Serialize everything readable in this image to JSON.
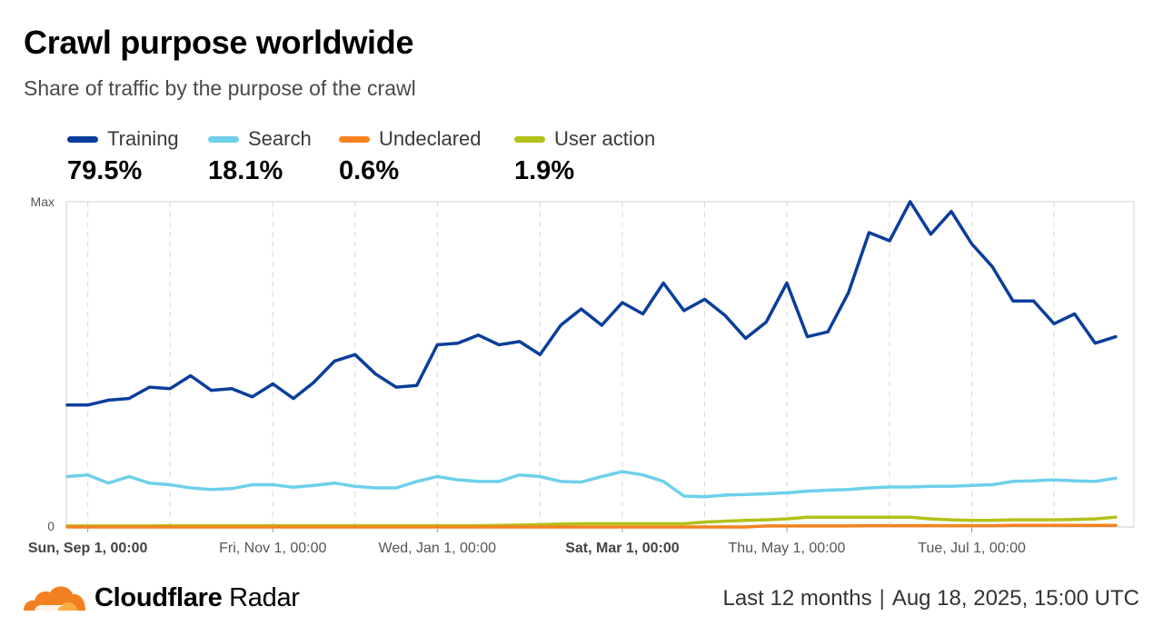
{
  "header": {
    "title": "Crawl purpose worldwide",
    "subtitle": "Share of traffic by the purpose of the crawl"
  },
  "legend": [
    {
      "name": "Training",
      "value": "79.5%",
      "color": "#0a3e9b"
    },
    {
      "name": "Search",
      "value": "18.1%",
      "color": "#6ed0ea"
    },
    {
      "name": "Undeclared",
      "value": "0.6%",
      "color": "#f5821f"
    },
    {
      "name": "User action",
      "value": "1.9%",
      "color": "#b2c21a"
    }
  ],
  "chart_data": {
    "type": "line",
    "y_tick_labels": [
      "Max",
      "0"
    ],
    "ylim": [
      0,
      100
    ],
    "x_tick_labels": [
      {
        "label": "Sun, Sep 1, 00:00",
        "bold": true,
        "index": 1
      },
      {
        "label": "Fri, Nov 1, 00:00",
        "bold": false,
        "index": 10
      },
      {
        "label": "Wed, Jan 1, 00:00",
        "bold": false,
        "index": 18
      },
      {
        "label": "Sat, Mar 1, 00:00",
        "bold": true,
        "index": 27
      },
      {
        "label": "Thu, May 1, 00:00",
        "bold": false,
        "index": 35
      },
      {
        "label": "Tue, Jul 1, 00:00",
        "bold": false,
        "index": 44
      }
    ],
    "minor_grid_indices": [
      5,
      14,
      23,
      31,
      40,
      48
    ],
    "series": [
      {
        "name": "Training",
        "color": "#0a3e9b",
        "values": [
          37.5,
          37.5,
          39,
          39.5,
          43,
          42.5,
          46.5,
          42,
          42.5,
          40,
          44,
          39.5,
          44.5,
          51,
          53,
          47,
          43,
          43.5,
          56,
          56.5,
          59,
          56,
          57,
          53,
          62,
          67,
          62,
          69,
          65.5,
          75,
          66.5,
          70,
          65,
          58,
          63,
          75,
          58.5,
          60,
          72,
          90.5,
          88,
          100,
          90,
          97,
          87,
          80,
          69.5,
          69.5,
          62.5,
          65.5,
          56.5,
          58.5
        ]
      },
      {
        "name": "Search",
        "color": "#6ed0ea",
        "values": [
          15.5,
          16,
          13.5,
          15.5,
          13.5,
          13,
          12,
          11.5,
          11.8,
          13,
          13,
          12.2,
          12.8,
          13.5,
          12.5,
          12,
          12,
          14,
          15.5,
          14.5,
          14,
          14,
          16,
          15.5,
          14,
          13.8,
          15.5,
          17,
          16,
          14,
          9.5,
          9.3,
          9.8,
          10,
          10.2,
          10.5,
          11,
          11.3,
          11.5,
          12,
          12.3,
          12.3,
          12.5,
          12.5,
          12.8,
          13,
          14,
          14.2,
          14.5,
          14.2,
          14,
          15
        ]
      },
      {
        "name": "Undeclared",
        "color": "#f5821f",
        "values": [
          0,
          0,
          0,
          0,
          0,
          0,
          0,
          0,
          0,
          0,
          0,
          0,
          0,
          0,
          0,
          0,
          0,
          0,
          0,
          0,
          0,
          0,
          0,
          0,
          0,
          0,
          0,
          0,
          0,
          0,
          0,
          0,
          0,
          0,
          0.3,
          0.3,
          0.3,
          0.3,
          0.3,
          0.4,
          0.4,
          0.4,
          0.4,
          0.4,
          0.4,
          0.4,
          0.5,
          0.5,
          0.5,
          0.5,
          0.5,
          0.5
        ]
      },
      {
        "name": "User action",
        "color": "#b2c21a",
        "values": [
          0.3,
          0.3,
          0.3,
          0.3,
          0.3,
          0.4,
          0.4,
          0.4,
          0.4,
          0.4,
          0.4,
          0.4,
          0.4,
          0.4,
          0.4,
          0.4,
          0.4,
          0.4,
          0.4,
          0.4,
          0.4,
          0.5,
          0.6,
          0.7,
          0.9,
          1,
          1,
          1,
          1,
          1,
          1,
          1.5,
          1.8,
          2,
          2.2,
          2.5,
          3,
          3,
          3,
          3,
          3,
          3,
          2.5,
          2.2,
          2,
          2,
          2.2,
          2.2,
          2.2,
          2.3,
          2.5,
          3
        ]
      }
    ]
  },
  "footer": {
    "brand_bold": "Cloudflare",
    "brand_light": " Radar",
    "range": "Last 12 months",
    "separator": "|",
    "timestamp": "Aug 18, 2025, 15:00 UTC"
  }
}
